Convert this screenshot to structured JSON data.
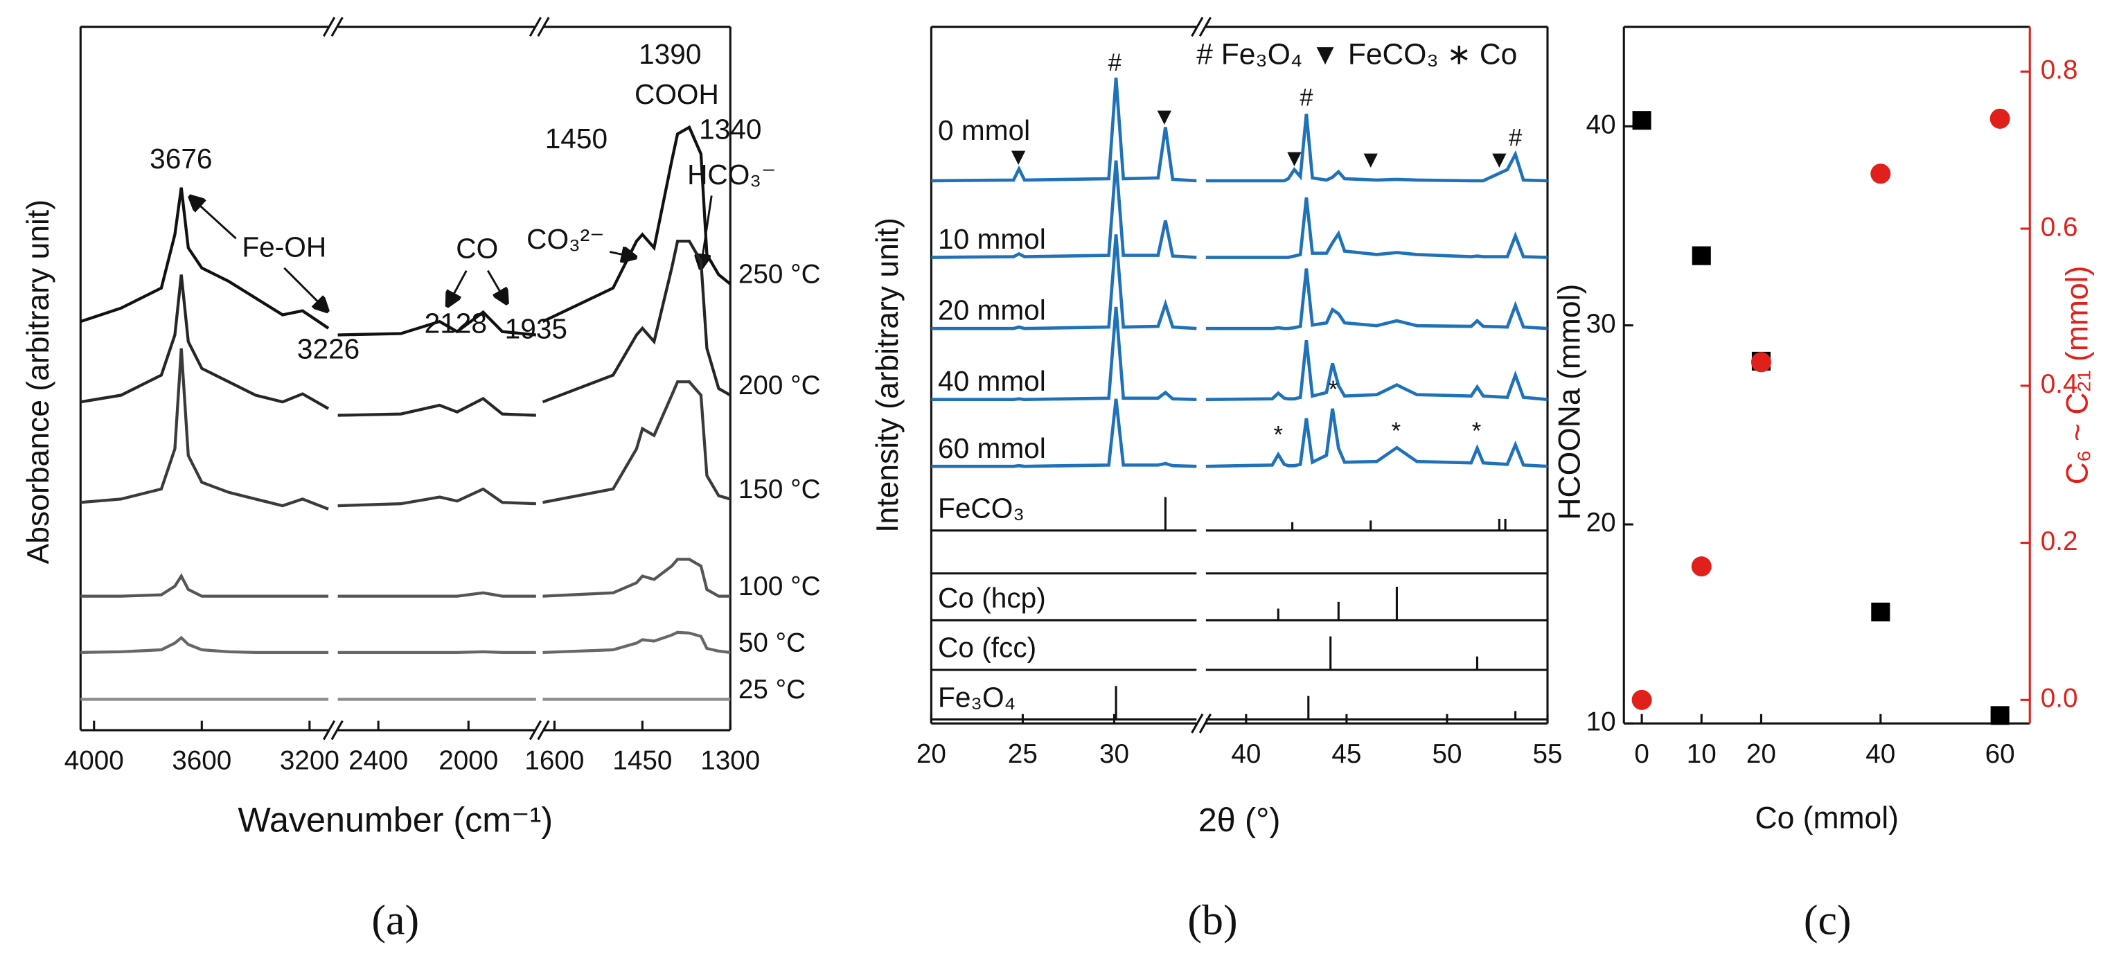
{
  "chart_data": [
    {
      "type": "spectra",
      "xlabel": "Wavenumber (cm⁻¹)",
      "ylabel": "Absorbance (arbitrary unit)",
      "panel_label": "(a)",
      "ylim": [
        0,
        10.5
      ],
      "x_segments": [
        {
          "xlim": [
            4050,
            3130
          ],
          "xticks": [
            4000,
            3600,
            3200
          ],
          "x": [
            4050,
            3900,
            3750,
            3700,
            3676,
            3650,
            3600,
            3500,
            3400,
            3300,
            3226,
            3130
          ]
        },
        {
          "xlim": [
            2580,
            1700
          ],
          "xticks": [
            2400,
            2000
          ],
          "x": [
            2580,
            2300,
            2128,
            2050,
            1935,
            1850,
            1700
          ]
        },
        {
          "xlim": [
            1620,
            1300
          ],
          "xticks": [
            1600,
            1450,
            1300
          ],
          "x": [
            1620,
            1500,
            1460,
            1450,
            1430,
            1400,
            1390,
            1370,
            1350,
            1340,
            1320,
            1300
          ]
        }
      ],
      "series": [
        {
          "name": "250 °C",
          "color": "#111111",
          "values": [
            [
              6.1,
              6.3,
              6.6,
              7.4,
              8.1,
              7.2,
              6.9,
              6.7,
              6.45,
              6.2,
              6.26,
              6.0
            ],
            [
              5.9,
              5.92,
              6.1,
              5.95,
              6.24,
              5.95,
              5.9
            ],
            [
              6.1,
              6.6,
              7.3,
              7.4,
              7.2,
              8.5,
              8.9,
              9.0,
              8.6,
              7.1,
              6.8,
              6.66
            ]
          ]
        },
        {
          "name": "200 °C",
          "color": "#262626",
          "values": [
            [
              4.9,
              5.0,
              5.3,
              5.9,
              6.8,
              5.8,
              5.4,
              5.2,
              5.0,
              4.9,
              5.02,
              4.8
            ],
            [
              4.7,
              4.72,
              4.85,
              4.75,
              4.95,
              4.72,
              4.7
            ],
            [
              4.9,
              5.3,
              5.9,
              6.0,
              5.8,
              6.9,
              7.3,
              7.3,
              7.0,
              5.7,
              5.1,
              5.0
            ]
          ]
        },
        {
          "name": "150 °C",
          "color": "#3a3a3a",
          "values": [
            [
              3.4,
              3.45,
              3.6,
              4.2,
              5.7,
              4.1,
              3.7,
              3.55,
              3.45,
              3.35,
              3.45,
              3.3
            ],
            [
              3.35,
              3.38,
              3.48,
              3.42,
              3.6,
              3.4,
              3.38
            ],
            [
              3.4,
              3.6,
              4.2,
              4.5,
              4.4,
              5.0,
              5.2,
              5.2,
              5.0,
              3.8,
              3.5,
              3.45
            ]
          ]
        },
        {
          "name": "100 °C",
          "color": "#555555",
          "values": [
            [
              2.0,
              2.0,
              2.02,
              2.15,
              2.3,
              2.1,
              2.0,
              2.0,
              2.0,
              2.0,
              2.0,
              2.0
            ],
            [
              2.0,
              2.0,
              2.0,
              2.0,
              2.05,
              2.0,
              2.0
            ],
            [
              2.0,
              2.05,
              2.2,
              2.3,
              2.25,
              2.45,
              2.55,
              2.55,
              2.45,
              2.1,
              2.0,
              2.0
            ]
          ]
        },
        {
          "name": "50 °C",
          "color": "#676767",
          "values": [
            [
              1.16,
              1.17,
              1.2,
              1.3,
              1.38,
              1.28,
              1.2,
              1.17,
              1.16,
              1.16,
              1.16,
              1.16
            ],
            [
              1.16,
              1.16,
              1.16,
              1.16,
              1.17,
              1.16,
              1.16
            ],
            [
              1.16,
              1.2,
              1.3,
              1.35,
              1.33,
              1.42,
              1.46,
              1.45,
              1.4,
              1.22,
              1.18,
              1.16
            ]
          ]
        },
        {
          "name": "25 °C",
          "color": "#8a8a8a",
          "values": [
            [
              0.46,
              0.46,
              0.46,
              0.46,
              0.46,
              0.46,
              0.46,
              0.46,
              0.46,
              0.46,
              0.46,
              0.46
            ],
            [
              0.46,
              0.46,
              0.46,
              0.46,
              0.46,
              0.46,
              0.46
            ],
            [
              0.46,
              0.46,
              0.46,
              0.46,
              0.46,
              0.46,
              0.46,
              0.46,
              0.46,
              0.46,
              0.46,
              0.46
            ]
          ]
        }
      ],
      "annotations": [
        "3676",
        "Fe-OH",
        "3226",
        "CO",
        "2128",
        "1935",
        "1450",
        "CO₃²⁻",
        "1390",
        "COOH",
        "1340",
        "HCO₃⁻"
      ]
    },
    {
      "type": "xrd",
      "xlabel": "2θ (°)",
      "ylabel": "Intensity (arbitrary unit)",
      "panel_label": "(b)",
      "legend_text": "# Fe₃O₄ ▼ FeCO₃ ∗ Co",
      "ylim": [
        0,
        100
      ],
      "x_segments": [
        {
          "xlim": [
            20,
            34.5
          ],
          "xticks": [
            20,
            25,
            30
          ],
          "x": [
            20,
            24.5,
            24.8,
            25.1,
            29.7,
            30.1,
            30.5,
            32.4,
            32.8,
            33.2,
            34.5
          ]
        },
        {
          "xlim": [
            38,
            55
          ],
          "xticks": [
            40,
            45,
            50,
            55
          ],
          "x": [
            38,
            41.3,
            41.6,
            41.9,
            42.1,
            42.4,
            42.7,
            43.0,
            43.3,
            44.0,
            44.3,
            44.6,
            44.9,
            46.5,
            47.5,
            48.5,
            51.2,
            51.5,
            51.8,
            53.0,
            53.4,
            53.8,
            55
          ]
        }
      ],
      "color": "#1f72b8",
      "series": [
        {
          "name": "0 mmol",
          "values": [
            [
              77.9,
              78,
              79.6,
              78,
              78.2,
              92.7,
              78.2,
              78.3,
              85.6,
              78.1,
              77.9
            ],
            [
              77.9,
              77.9,
              77.9,
              77.9,
              78.2,
              79.5,
              78.5,
              87.5,
              78.3,
              78,
              78.4,
              79.2,
              78.2,
              78,
              78.1,
              78,
              77.9,
              77.9,
              77.9,
              79.5,
              81.7,
              78,
              77.9
            ]
          ]
        },
        {
          "name": "10 mmol",
          "values": [
            [
              66.9,
              67,
              67.4,
              67,
              67.2,
              80.8,
              67.2,
              67.2,
              72.2,
              67.1,
              66.9
            ],
            [
              66.9,
              66.9,
              66.9,
              66.9,
              66.9,
              67.1,
              67.3,
              75.5,
              67.5,
              67.5,
              69.0,
              70.3,
              67.8,
              67.3,
              67.6,
              67.3,
              67,
              67.1,
              67,
              67,
              70,
              67,
              66.9
            ]
          ]
        },
        {
          "name": "20 mmol",
          "values": [
            [
              56.7,
              56.7,
              56.9,
              56.7,
              56.9,
              70.2,
              56.9,
              57,
              60.2,
              56.9,
              56.7
            ],
            [
              56.7,
              56.7,
              56.8,
              56.7,
              56.7,
              56.8,
              57,
              65.3,
              57.2,
              57.5,
              59.4,
              58.8,
              57.5,
              57.1,
              57.8,
              57.1,
              57,
              57.8,
              57,
              56.9,
              60,
              56.9,
              56.7
            ]
          ]
        },
        {
          "name": "40 mmol",
          "values": [
            [
              46.5,
              46.5,
              46.6,
              46.5,
              46.7,
              59.8,
              46.7,
              46.7,
              47.5,
              46.6,
              46.5
            ],
            [
              46.5,
              46.6,
              47.4,
              46.7,
              46.6,
              46.6,
              46.8,
              55,
              47,
              47.5,
              51.7,
              48.5,
              47,
              47.2,
              48.6,
              47.2,
              47,
              48.3,
              47,
              46.8,
              50,
              46.8,
              46.5
            ]
          ]
        },
        {
          "name": "60 mmol",
          "values": [
            [
              36.9,
              36.9,
              37,
              36.9,
              37.1,
              46.6,
              37.1,
              37.1,
              37.3,
              37,
              36.9
            ],
            [
              36.9,
              37.1,
              38.6,
              37.2,
              37,
              37,
              37.2,
              43.8,
              37.5,
              38.5,
              45.2,
              39.5,
              37.5,
              37.6,
              39.6,
              37.6,
              37.4,
              39.5,
              37.4,
              37.2,
              40,
              37.1,
              36.9
            ]
          ]
        }
      ],
      "references": [
        {
          "name": "FeCO₃",
          "x": [
            32.8,
            42.3,
            46.2,
            52.6,
            52.9
          ],
          "values": [
            100,
            25,
            30,
            35,
            35
          ]
        },
        {
          "name": "Co (hcp)",
          "x": [
            41.6,
            44.6,
            47.5
          ],
          "values": [
            35,
            55,
            100
          ]
        },
        {
          "name": "Co (fcc)",
          "x": [
            44.2,
            51.5
          ],
          "values": [
            100,
            40
          ]
        },
        {
          "name": "Fe₃O₄",
          "x": [
            30.1,
            43.1,
            53.4
          ],
          "values": [
            100,
            70,
            25
          ]
        }
      ],
      "annotations": [
        "▼",
        "#",
        "▼",
        "▼",
        "#",
        "▼",
        "▼",
        "#",
        "*",
        "*",
        "*",
        "*"
      ]
    },
    {
      "type": "scatter",
      "xlabel": "Co (mmol)",
      "ylabel": "HCOONa (mmol)",
      "y2label": "C₆ ~ C₂₁ (mmol)",
      "panel_label": "(c)",
      "x": [
        0,
        10,
        20,
        40,
        60
      ],
      "xlim": [
        -3,
        65
      ],
      "xticks": [
        0,
        10,
        20,
        40,
        60
      ],
      "ylim": [
        10,
        45
      ],
      "yticks": [
        10,
        20,
        30,
        40
      ],
      "y2lim": [
        -0.03,
        0.857
      ],
      "y2ticks": [
        {
          "value": 0,
          "label": "0.0"
        },
        0.2,
        0.4,
        0.6,
        0.8
      ],
      "y2color": "#e0201b",
      "series": [
        {
          "color": "#000000",
          "marker": "square",
          "values": [
            40.3,
            33.5,
            28.2,
            15.6,
            10.4
          ]
        },
        {
          "color": "#e0201b",
          "marker": "circle",
          "axis": "y2",
          "values": [
            0,
            0.17,
            0.43,
            0.67,
            0.74
          ]
        }
      ]
    }
  ]
}
